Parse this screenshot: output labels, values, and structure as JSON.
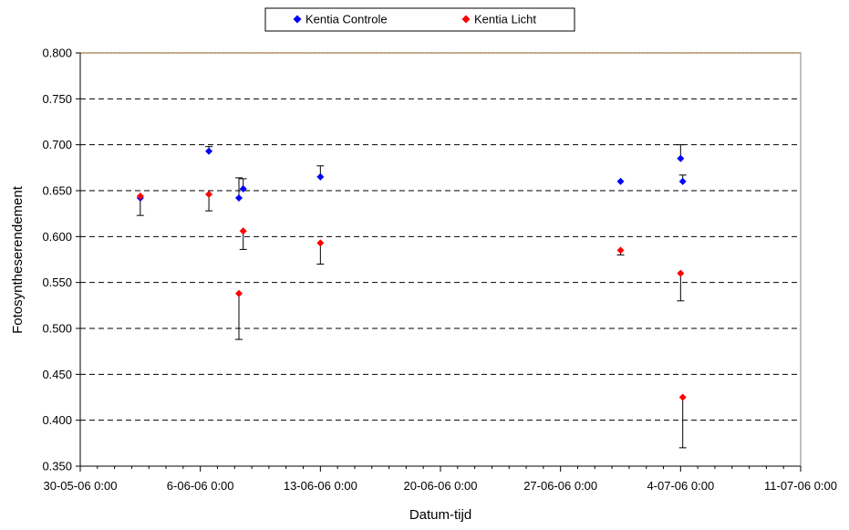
{
  "chart_data": {
    "type": "scatter",
    "xlabel": "Datum-tijd",
    "ylabel": "Fotosyntheserendement",
    "x_ticks": [
      "30-05-06 0:00",
      "6-06-06 0:00",
      "13-06-06 0:00",
      "20-06-06 0:00",
      "27-06-06 0:00",
      "4-07-06 0:00",
      "11-07-06 0:00"
    ],
    "y_ticks": [
      "0.350",
      "0.400",
      "0.450",
      "0.500",
      "0.550",
      "0.600",
      "0.650",
      "0.700",
      "0.750",
      "0.800"
    ],
    "xlim": [
      "2006-05-30 00:00",
      "2006-07-11 00:00"
    ],
    "ylim": [
      0.35,
      0.8
    ],
    "grid": "horizontal dashed",
    "legend_position": "top-center",
    "series": [
      {
        "name": "Kentia Controle",
        "color": "#0000ff",
        "marker": "diamond",
        "points": [
          {
            "x": "2006-06-02 12:00",
            "y": 0.642,
            "err": null
          },
          {
            "x": "2006-06-06 12:00",
            "y": 0.693,
            "err": 0.005
          },
          {
            "x": "2006-06-08 06:00",
            "y": 0.642,
            "err": 0.022
          },
          {
            "x": "2006-06-08 12:00",
            "y": 0.652,
            "err": 0.011
          },
          {
            "x": "2006-06-13 00:00",
            "y": 0.665,
            "err": 0.012
          },
          {
            "x": "2006-06-30 12:00",
            "y": 0.66,
            "err": null
          },
          {
            "x": "2006-07-04 00:00",
            "y": 0.685,
            "err": 0.015
          },
          {
            "x": "2006-07-04 03:00",
            "y": 0.66,
            "err": 0.007
          }
        ]
      },
      {
        "name": "Kentia Licht",
        "color": "#ff0000",
        "marker": "diamond",
        "points": [
          {
            "x": "2006-06-02 12:00",
            "y": 0.644,
            "err": 0.021
          },
          {
            "x": "2006-06-06 12:00",
            "y": 0.646,
            "err": 0.018
          },
          {
            "x": "2006-06-08 06:00",
            "y": 0.538,
            "err": 0.05
          },
          {
            "x": "2006-06-08 12:00",
            "y": 0.606,
            "err": 0.02
          },
          {
            "x": "2006-06-13 00:00",
            "y": 0.593,
            "err": 0.023
          },
          {
            "x": "2006-06-30 12:00",
            "y": 0.585,
            "err": 0.005
          },
          {
            "x": "2006-07-04 00:00",
            "y": 0.56,
            "err": 0.03
          },
          {
            "x": "2006-07-04 03:00",
            "y": 0.425,
            "err": 0.055
          }
        ]
      }
    ]
  }
}
